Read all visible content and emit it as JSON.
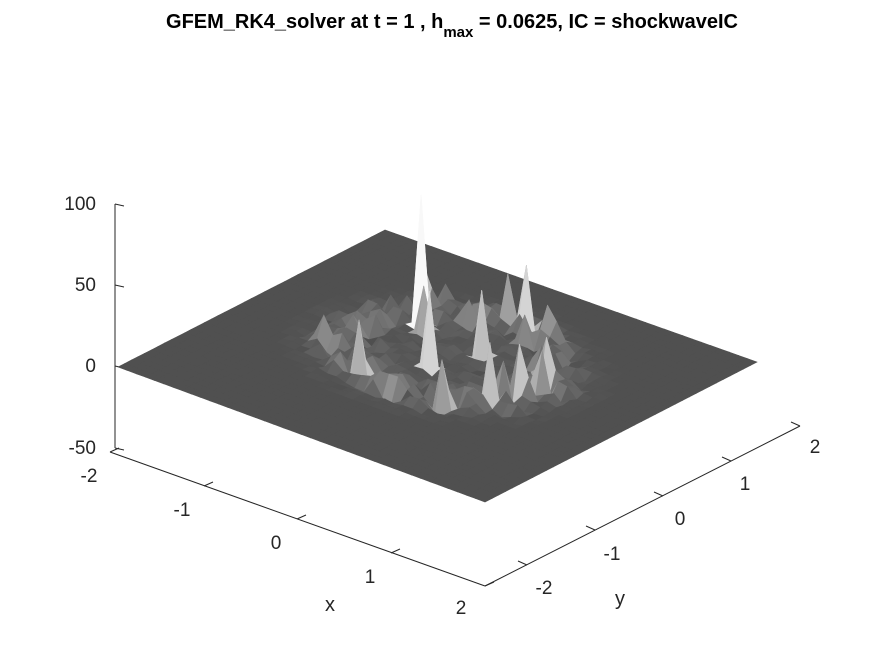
{
  "chart_data": {
    "type": "surface",
    "title": {
      "prefix": "GFEM_RK4_solver at t = 1 , h",
      "subscript": "max",
      "suffix": " = 0.0625, IC = shockwaveIC"
    },
    "xlabel": "x",
    "ylabel": "y",
    "zlabel": "",
    "xlim": [
      -2,
      2
    ],
    "ylim": [
      -2.5,
      2
    ],
    "zlim": [
      -50,
      100
    ],
    "x_ticks": [
      "-2",
      "-1",
      "0",
      "1",
      "2"
    ],
    "y_ticks": [
      "-2",
      "-1",
      "0",
      "1",
      "2"
    ],
    "z_ticks": [
      "100",
      "50",
      "0",
      "-50"
    ],
    "colormap": "gray",
    "base_level": 0,
    "ring_center": [
      0,
      0
    ],
    "ring_radius": 1.0,
    "peak_max": 80,
    "background": "#ffffff",
    "surface_color": "#555555"
  }
}
